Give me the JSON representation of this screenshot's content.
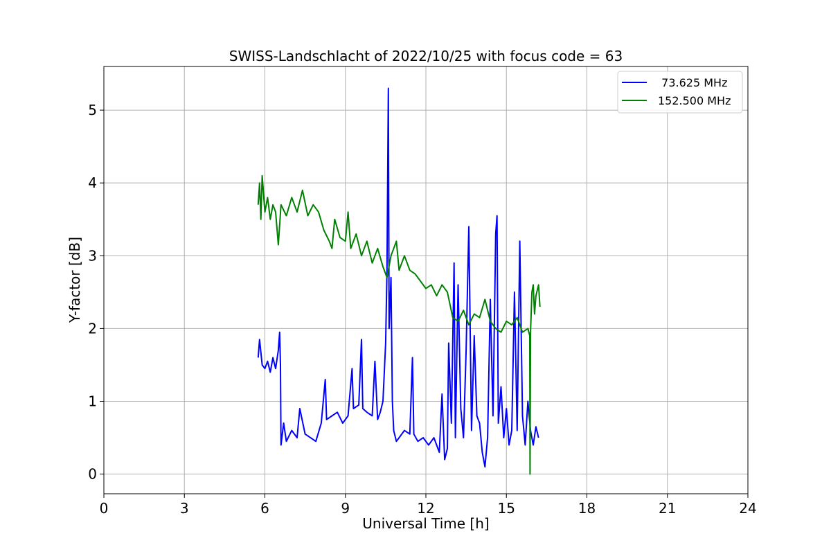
{
  "chart_data": {
    "type": "line",
    "title": "SWISS-Landschlacht of 2022/10/25 with focus code = 63",
    "xlabel": "Universal Time [h]",
    "ylabel": "Y-factor [dB]",
    "xlim": [
      0,
      24
    ],
    "ylim": [
      -0.27,
      5.6
    ],
    "xticks": [
      0,
      3,
      6,
      9,
      12,
      15,
      18,
      21,
      24
    ],
    "xtick_labels": [
      "0",
      "3",
      "6",
      "9",
      "12",
      "15",
      "18",
      "21",
      "24"
    ],
    "yticks": [
      0,
      1,
      2,
      3,
      4,
      5
    ],
    "ytick_labels": [
      "0",
      "1",
      "2",
      "3",
      "4",
      "5"
    ],
    "grid": true,
    "legend_position": "top-right",
    "colors": {
      "series_73": "#0000ff",
      "series_152": "#008000"
    },
    "series": [
      {
        "name": "  73.625 MHz",
        "color": "#0000ff",
        "points": [
          [
            5.75,
            1.6
          ],
          [
            5.8,
            1.85
          ],
          [
            5.9,
            1.5
          ],
          [
            6.0,
            1.45
          ],
          [
            6.1,
            1.55
          ],
          [
            6.2,
            1.4
          ],
          [
            6.3,
            1.6
          ],
          [
            6.4,
            1.45
          ],
          [
            6.5,
            1.7
          ],
          [
            6.55,
            1.95
          ],
          [
            6.58,
            1.5
          ],
          [
            6.6,
            0.4
          ],
          [
            6.7,
            0.7
          ],
          [
            6.8,
            0.45
          ],
          [
            7.0,
            0.6
          ],
          [
            7.2,
            0.5
          ],
          [
            7.3,
            0.9
          ],
          [
            7.5,
            0.55
          ],
          [
            7.7,
            0.5
          ],
          [
            7.9,
            0.45
          ],
          [
            8.1,
            0.7
          ],
          [
            8.25,
            1.3
          ],
          [
            8.3,
            0.75
          ],
          [
            8.5,
            0.8
          ],
          [
            8.7,
            0.85
          ],
          [
            8.9,
            0.7
          ],
          [
            9.1,
            0.8
          ],
          [
            9.25,
            1.45
          ],
          [
            9.3,
            0.9
          ],
          [
            9.5,
            0.95
          ],
          [
            9.6,
            1.85
          ],
          [
            9.65,
            0.9
          ],
          [
            9.8,
            0.85
          ],
          [
            10.0,
            0.8
          ],
          [
            10.1,
            1.55
          ],
          [
            10.2,
            0.75
          ],
          [
            10.3,
            0.85
          ],
          [
            10.4,
            1.0
          ],
          [
            10.5,
            1.8
          ],
          [
            10.55,
            2.8
          ],
          [
            10.6,
            5.3
          ],
          [
            10.63,
            2.0
          ],
          [
            10.7,
            2.7
          ],
          [
            10.75,
            1.0
          ],
          [
            10.8,
            0.6
          ],
          [
            10.9,
            0.45
          ],
          [
            11.0,
            0.5
          ],
          [
            11.2,
            0.6
          ],
          [
            11.4,
            0.55
          ],
          [
            11.5,
            1.6
          ],
          [
            11.55,
            0.55
          ],
          [
            11.7,
            0.45
          ],
          [
            11.9,
            0.5
          ],
          [
            12.1,
            0.4
          ],
          [
            12.3,
            0.5
          ],
          [
            12.5,
            0.3
          ],
          [
            12.6,
            1.1
          ],
          [
            12.7,
            0.2
          ],
          [
            12.8,
            0.35
          ],
          [
            12.85,
            1.8
          ],
          [
            12.95,
            0.7
          ],
          [
            13.05,
            2.9
          ],
          [
            13.1,
            0.5
          ],
          [
            13.2,
            2.6
          ],
          [
            13.3,
            0.9
          ],
          [
            13.4,
            0.5
          ],
          [
            13.5,
            1.7
          ],
          [
            13.6,
            3.4
          ],
          [
            13.7,
            0.6
          ],
          [
            13.8,
            1.9
          ],
          [
            13.9,
            0.8
          ],
          [
            14.0,
            0.7
          ],
          [
            14.1,
            0.3
          ],
          [
            14.2,
            0.1
          ],
          [
            14.3,
            0.5
          ],
          [
            14.4,
            2.4
          ],
          [
            14.5,
            0.8
          ],
          [
            14.6,
            3.3
          ],
          [
            14.65,
            3.55
          ],
          [
            14.7,
            0.7
          ],
          [
            14.8,
            1.2
          ],
          [
            14.9,
            0.5
          ],
          [
            15.0,
            0.9
          ],
          [
            15.1,
            0.4
          ],
          [
            15.2,
            0.6
          ],
          [
            15.3,
            2.5
          ],
          [
            15.4,
            0.6
          ],
          [
            15.5,
            3.2
          ],
          [
            15.6,
            0.8
          ],
          [
            15.7,
            0.4
          ],
          [
            15.8,
            1.0
          ],
          [
            15.9,
            0.6
          ],
          [
            16.0,
            0.4
          ],
          [
            16.1,
            0.65
          ],
          [
            16.2,
            0.5
          ]
        ]
      },
      {
        "name": "152.500 MHz",
        "color": "#008000",
        "points": [
          [
            5.75,
            3.7
          ],
          [
            5.8,
            4.0
          ],
          [
            5.85,
            3.5
          ],
          [
            5.9,
            4.1
          ],
          [
            6.0,
            3.6
          ],
          [
            6.1,
            3.8
          ],
          [
            6.2,
            3.5
          ],
          [
            6.3,
            3.7
          ],
          [
            6.4,
            3.6
          ],
          [
            6.5,
            3.15
          ],
          [
            6.6,
            3.7
          ],
          [
            6.8,
            3.55
          ],
          [
            7.0,
            3.8
          ],
          [
            7.2,
            3.6
          ],
          [
            7.4,
            3.9
          ],
          [
            7.6,
            3.55
          ],
          [
            7.8,
            3.7
          ],
          [
            8.0,
            3.6
          ],
          [
            8.2,
            3.35
          ],
          [
            8.4,
            3.2
          ],
          [
            8.5,
            3.1
          ],
          [
            8.6,
            3.5
          ],
          [
            8.8,
            3.25
          ],
          [
            9.0,
            3.2
          ],
          [
            9.1,
            3.6
          ],
          [
            9.2,
            3.1
          ],
          [
            9.4,
            3.3
          ],
          [
            9.6,
            3.0
          ],
          [
            9.8,
            3.2
          ],
          [
            10.0,
            2.9
          ],
          [
            10.2,
            3.1
          ],
          [
            10.4,
            2.85
          ],
          [
            10.55,
            2.7
          ],
          [
            10.7,
            3.0
          ],
          [
            10.9,
            3.2
          ],
          [
            11.0,
            2.8
          ],
          [
            11.2,
            3.0
          ],
          [
            11.4,
            2.8
          ],
          [
            11.6,
            2.75
          ],
          [
            11.8,
            2.65
          ],
          [
            12.0,
            2.55
          ],
          [
            12.2,
            2.6
          ],
          [
            12.4,
            2.45
          ],
          [
            12.6,
            2.6
          ],
          [
            12.8,
            2.5
          ],
          [
            13.0,
            2.15
          ],
          [
            13.2,
            2.1
          ],
          [
            13.4,
            2.25
          ],
          [
            13.6,
            2.05
          ],
          [
            13.8,
            2.2
          ],
          [
            14.0,
            2.15
          ],
          [
            14.2,
            2.4
          ],
          [
            14.4,
            2.1
          ],
          [
            14.6,
            2.0
          ],
          [
            14.8,
            1.95
          ],
          [
            15.0,
            2.1
          ],
          [
            15.2,
            2.05
          ],
          [
            15.4,
            2.15
          ],
          [
            15.6,
            1.95
          ],
          [
            15.8,
            2.0
          ],
          [
            15.87,
            1.9
          ],
          [
            15.88,
            0.0
          ],
          [
            15.9,
            1.95
          ],
          [
            15.95,
            2.5
          ],
          [
            16.0,
            2.6
          ],
          [
            16.05,
            2.2
          ],
          [
            16.1,
            2.45
          ],
          [
            16.2,
            2.6
          ],
          [
            16.25,
            2.3
          ]
        ]
      }
    ]
  }
}
